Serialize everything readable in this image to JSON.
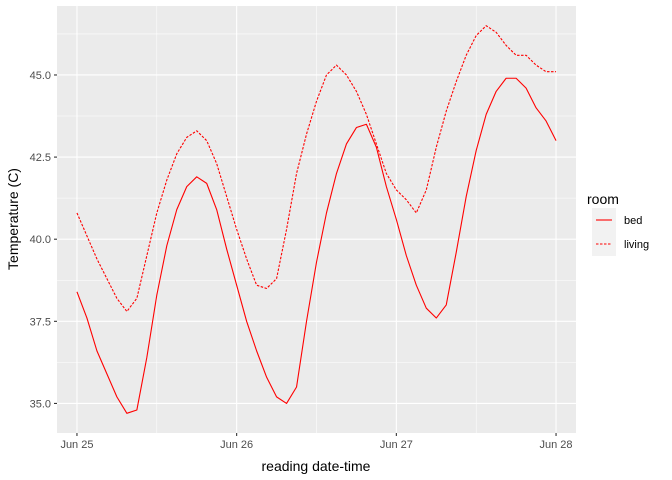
{
  "chart_data": {
    "type": "line",
    "xlabel": "reading date-time",
    "ylabel": "Temperature (C)",
    "x_ticks": [
      "Jun 25",
      "Jun 26",
      "Jun 27",
      "Jun 28"
    ],
    "y_ticks": [
      "35.0",
      "37.5",
      "40.0",
      "42.5",
      "45.0"
    ],
    "y_tick_values": [
      35.0,
      37.5,
      40.0,
      42.5,
      45.0
    ],
    "xlim": [
      "2023-06-24T21:00",
      "2023-06-28T03:00"
    ],
    "ylim": [
      34.1,
      47.1
    ],
    "grid": true,
    "legend": {
      "title": "room",
      "position": "right"
    },
    "series": [
      {
        "name": "bed",
        "color": "#ff0000",
        "linestyle": "solid",
        "points": [
          [
            "2023-06-25T00:00",
            38.4
          ],
          [
            "2023-06-25T01:30",
            37.6
          ],
          [
            "2023-06-25T03:00",
            36.6
          ],
          [
            "2023-06-25T04:30",
            35.9
          ],
          [
            "2023-06-25T06:00",
            35.2
          ],
          [
            "2023-06-25T07:30",
            34.7
          ],
          [
            "2023-06-25T09:00",
            34.8
          ],
          [
            "2023-06-25T10:30",
            36.4
          ],
          [
            "2023-06-25T12:00",
            38.3
          ],
          [
            "2023-06-25T13:30",
            39.8
          ],
          [
            "2023-06-25T15:00",
            40.9
          ],
          [
            "2023-06-25T16:30",
            41.6
          ],
          [
            "2023-06-25T18:00",
            41.9
          ],
          [
            "2023-06-25T19:30",
            41.7
          ],
          [
            "2023-06-25T21:00",
            40.9
          ],
          [
            "2023-06-25T22:30",
            39.7
          ],
          [
            "2023-06-26T00:00",
            38.6
          ],
          [
            "2023-06-26T01:30",
            37.5
          ],
          [
            "2023-06-26T03:00",
            36.6
          ],
          [
            "2023-06-26T04:30",
            35.8
          ],
          [
            "2023-06-26T06:00",
            35.2
          ],
          [
            "2023-06-26T07:30",
            35.0
          ],
          [
            "2023-06-26T09:00",
            35.5
          ],
          [
            "2023-06-26T10:30",
            37.5
          ],
          [
            "2023-06-26T12:00",
            39.3
          ],
          [
            "2023-06-26T13:30",
            40.8
          ],
          [
            "2023-06-26T15:00",
            42.0
          ],
          [
            "2023-06-26T16:30",
            42.9
          ],
          [
            "2023-06-26T18:00",
            43.4
          ],
          [
            "2023-06-26T19:30",
            43.5
          ],
          [
            "2023-06-26T21:00",
            42.8
          ],
          [
            "2023-06-26T22:30",
            41.6
          ],
          [
            "2023-06-27T00:00",
            40.6
          ],
          [
            "2023-06-27T01:30",
            39.5
          ],
          [
            "2023-06-27T03:00",
            38.6
          ],
          [
            "2023-06-27T04:30",
            37.9
          ],
          [
            "2023-06-27T06:00",
            37.6
          ],
          [
            "2023-06-27T07:30",
            38.0
          ],
          [
            "2023-06-27T09:00",
            39.6
          ],
          [
            "2023-06-27T10:30",
            41.3
          ],
          [
            "2023-06-27T12:00",
            42.7
          ],
          [
            "2023-06-27T13:30",
            43.8
          ],
          [
            "2023-06-27T15:00",
            44.5
          ],
          [
            "2023-06-27T16:30",
            44.9
          ],
          [
            "2023-06-27T18:00",
            44.9
          ],
          [
            "2023-06-27T19:30",
            44.6
          ],
          [
            "2023-06-27T21:00",
            44.0
          ],
          [
            "2023-06-27T22:30",
            43.6
          ],
          [
            "2023-06-28T00:00",
            43.0
          ]
        ]
      },
      {
        "name": "living",
        "color": "#ff0000",
        "linestyle": "dashed",
        "points": [
          [
            "2023-06-25T00:00",
            40.8
          ],
          [
            "2023-06-25T01:30",
            40.1
          ],
          [
            "2023-06-25T03:00",
            39.4
          ],
          [
            "2023-06-25T04:30",
            38.8
          ],
          [
            "2023-06-25T06:00",
            38.2
          ],
          [
            "2023-06-25T07:30",
            37.8
          ],
          [
            "2023-06-25T09:00",
            38.2
          ],
          [
            "2023-06-25T10:30",
            39.5
          ],
          [
            "2023-06-25T12:00",
            40.8
          ],
          [
            "2023-06-25T13:30",
            41.8
          ],
          [
            "2023-06-25T15:00",
            42.6
          ],
          [
            "2023-06-25T16:30",
            43.1
          ],
          [
            "2023-06-25T18:00",
            43.3
          ],
          [
            "2023-06-25T19:30",
            43.0
          ],
          [
            "2023-06-25T21:00",
            42.3
          ],
          [
            "2023-06-25T22:30",
            41.3
          ],
          [
            "2023-06-26T00:00",
            40.3
          ],
          [
            "2023-06-26T01:30",
            39.4
          ],
          [
            "2023-06-26T03:00",
            38.6
          ],
          [
            "2023-06-26T04:30",
            38.5
          ],
          [
            "2023-06-26T06:00",
            38.8
          ],
          [
            "2023-06-26T07:30",
            40.3
          ],
          [
            "2023-06-26T09:00",
            42.0
          ],
          [
            "2023-06-26T10:30",
            43.2
          ],
          [
            "2023-06-26T12:00",
            44.2
          ],
          [
            "2023-06-26T13:30",
            45.0
          ],
          [
            "2023-06-26T15:00",
            45.3
          ],
          [
            "2023-06-26T16:30",
            45.0
          ],
          [
            "2023-06-26T18:00",
            44.5
          ],
          [
            "2023-06-26T19:30",
            43.8
          ],
          [
            "2023-06-26T21:00",
            42.9
          ],
          [
            "2023-06-26T22:30",
            42.0
          ],
          [
            "2023-06-27T00:00",
            41.5
          ],
          [
            "2023-06-27T01:30",
            41.2
          ],
          [
            "2023-06-27T03:00",
            40.8
          ],
          [
            "2023-06-27T04:30",
            41.5
          ],
          [
            "2023-06-27T06:00",
            42.8
          ],
          [
            "2023-06-27T07:30",
            43.9
          ],
          [
            "2023-06-27T09:00",
            44.8
          ],
          [
            "2023-06-27T10:30",
            45.6
          ],
          [
            "2023-06-27T12:00",
            46.2
          ],
          [
            "2023-06-27T13:30",
            46.5
          ],
          [
            "2023-06-27T15:00",
            46.3
          ],
          [
            "2023-06-27T16:30",
            45.9
          ],
          [
            "2023-06-27T18:00",
            45.6
          ],
          [
            "2023-06-27T19:30",
            45.6
          ],
          [
            "2023-06-27T21:00",
            45.3
          ],
          [
            "2023-06-27T22:30",
            45.1
          ],
          [
            "2023-06-28T00:00",
            45.1
          ]
        ]
      }
    ]
  }
}
